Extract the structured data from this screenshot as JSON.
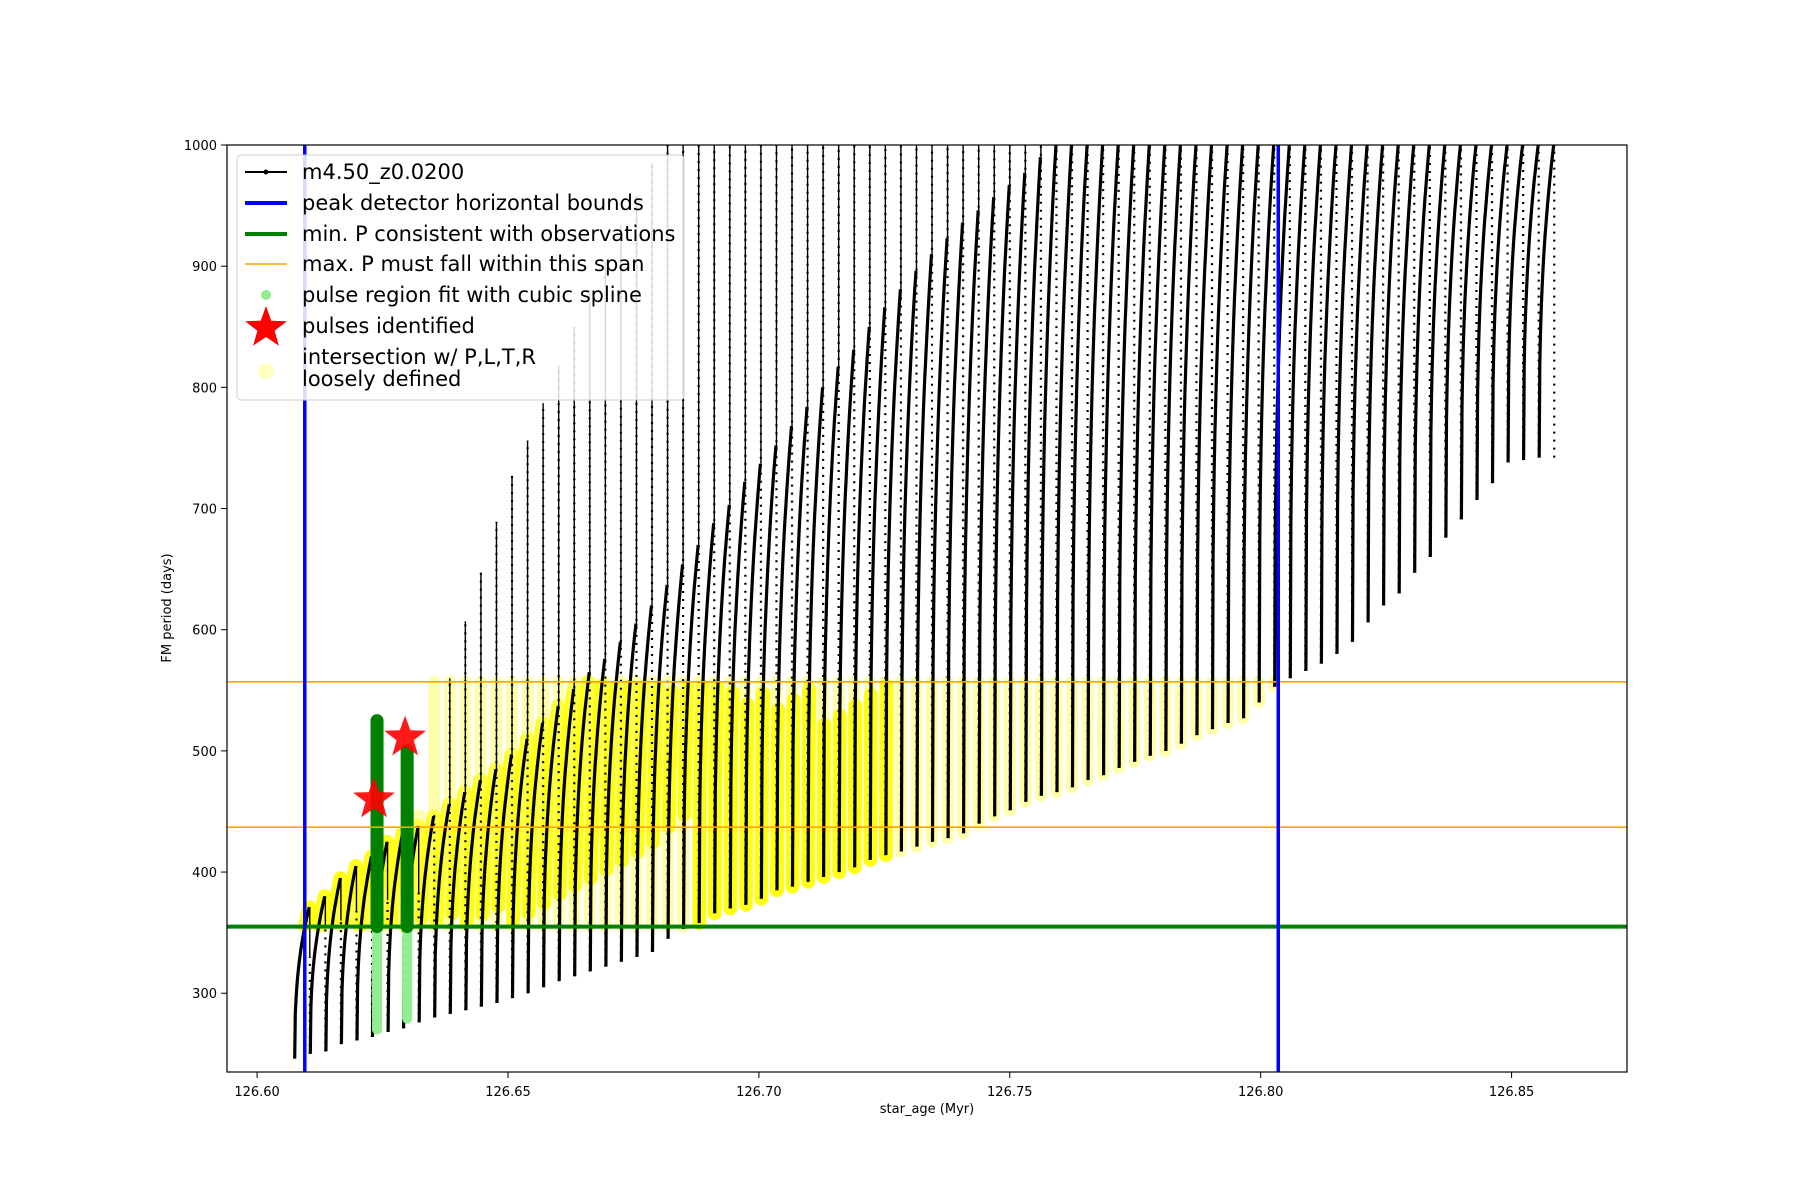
{
  "chart_data": {
    "type": "line",
    "xlabel": "star_age (Myr)",
    "ylabel": "FM period (days)",
    "xlim": [
      126.594,
      126.873
    ],
    "ylim": [
      235,
      1000
    ],
    "xticks": [
      "126.60",
      "126.65",
      "126.70",
      "126.75",
      "126.80",
      "126.85"
    ],
    "yticks": [
      "300",
      "400",
      "500",
      "600",
      "700",
      "800",
      "900",
      "1000"
    ],
    "grid": false,
    "legend_position": "upper-left",
    "legend": [
      {
        "label": "m4.50_z0.0200",
        "kind": "line-marker",
        "color": "#000000"
      },
      {
        "label": "peak detector horizontal bounds",
        "kind": "line",
        "color": "#0000ff"
      },
      {
        "label": "min. P consistent with observations",
        "kind": "line",
        "color": "#008000"
      },
      {
        "label": "max. P must fall within this span",
        "kind": "line",
        "color": "#ffa500"
      },
      {
        "label": "pulse region fit with cubic spline",
        "kind": "dot",
        "color": "#90ee90"
      },
      {
        "label": "pulses identified",
        "kind": "star",
        "color": "#ff0000"
      },
      {
        "label": "intersection w/ P,L,T,R\nloosely defined",
        "kind": "circle",
        "color": "#ffff99"
      }
    ],
    "vertical_lines": {
      "name": "peak detector horizontal bounds",
      "color": "#0000ff",
      "x": [
        126.6095,
        126.8035
      ]
    },
    "horizontal_lines": [
      {
        "name": "min. P consistent with observations",
        "color": "#008000",
        "y": 355
      },
      {
        "name": "max. P must fall within this span",
        "color": "#ffa500",
        "y": 437
      },
      {
        "name": "max. P must fall within this span",
        "color": "#ffa500",
        "y": 557
      }
    ],
    "series": [
      {
        "name": "m4.50_z0.0200",
        "color": "#000000",
        "cycles": {
          "x_start": [
            126.6075,
            126.6106,
            126.6137,
            126.6168,
            126.6199,
            126.623,
            126.6261,
            126.6292,
            126.6323,
            126.6354,
            126.6385,
            126.6416,
            126.6447,
            126.6478,
            126.6509,
            126.654,
            126.6571,
            126.6602,
            126.6633,
            126.6664,
            126.6695,
            126.6726,
            126.6757,
            126.6788,
            126.6819,
            126.685,
            126.6881,
            126.6912,
            126.6943,
            126.6974,
            126.7005,
            126.7036,
            126.7067,
            126.7098,
            126.7129,
            126.716,
            126.7191,
            126.7222,
            126.7253,
            126.7284,
            126.7315,
            126.7346,
            126.7377,
            126.7408,
            126.7439,
            126.747,
            126.7501,
            126.7532,
            126.7563,
            126.7594,
            126.7625,
            126.7656,
            126.7687,
            126.7718,
            126.7749,
            126.778,
            126.7811,
            126.7842,
            126.7873,
            126.7904,
            126.7935,
            126.7966,
            126.7997,
            126.8028,
            126.8059,
            126.809,
            126.8121,
            126.8152,
            126.8183,
            126.8214,
            126.8245,
            126.8276,
            126.8307,
            126.8338,
            126.8369,
            126.84,
            126.8431,
            126.8462,
            126.8493,
            126.8524,
            126.8555
          ],
          "y_min": [
            246,
            250,
            252,
            258,
            261,
            264,
            268,
            271,
            276,
            280,
            283,
            286,
            289,
            292,
            296,
            300,
            305,
            310,
            314,
            318,
            322,
            326,
            330,
            334,
            345,
            353,
            358,
            366,
            370,
            373,
            378,
            385,
            388,
            392,
            396,
            400,
            404,
            410,
            414,
            417,
            421,
            425,
            428,
            432,
            440,
            446,
            451,
            458,
            463,
            466,
            470,
            476,
            480,
            486,
            491,
            496,
            500,
            506,
            513,
            518,
            523,
            527,
            540,
            553,
            560,
            566,
            572,
            580,
            590,
            606,
            620,
            630,
            647,
            660,
            676,
            691,
            707,
            721,
            738,
            740,
            742
          ],
          "y_max": [
            371,
            380,
            395,
            405,
            413,
            425,
            432,
            438,
            446,
            456,
            466,
            476,
            485,
            497,
            510,
            523,
            537,
            551,
            565,
            576,
            590,
            605,
            620,
            637,
            654,
            670,
            688,
            703,
            722,
            737,
            752,
            768,
            784,
            800,
            817,
            831,
            850,
            866,
            881,
            896,
            910,
            923,
            936,
            946,
            957,
            967,
            977,
            990,
            1000,
            1000,
            1000,
            1000,
            1000,
            1000,
            1000,
            1000,
            1000,
            1000,
            1000,
            1000,
            1000,
            1000,
            1000,
            1000,
            1000,
            1000,
            1000,
            1000,
            1000,
            1000,
            1000,
            1000,
            1000,
            1000,
            1000,
            1000,
            1000,
            1000,
            1000,
            1000,
            1000
          ],
          "spike_top": [
            330,
            355,
            360,
            368,
            372,
            377,
            381,
            383,
            447,
            560,
            607,
            647,
            689,
            727,
            756,
            787,
            818,
            850,
            880,
            904,
            934,
            958,
            985,
            1000,
            1000,
            1000,
            1000,
            1000,
            1000,
            1000,
            1000,
            1000,
            1000,
            1000,
            1000,
            1000,
            1000,
            1000,
            1000,
            1000,
            1000,
            1000,
            1000,
            1000,
            1000,
            1000,
            1000,
            1000,
            1000,
            1000,
            1000,
            1000,
            1000,
            1000,
            1000,
            1000,
            1000,
            1000,
            1000,
            1000,
            1000,
            1000,
            1000,
            1000,
            1000,
            1000,
            1000,
            1000,
            1000,
            1000,
            1000,
            1000,
            1000,
            1000,
            1000,
            1000,
            1000,
            1000,
            1000,
            1000,
            1000
          ]
        }
      },
      {
        "name": "pulse region fit with cubic spline",
        "color": "#90ee90",
        "x": [
          126.6239,
          126.6299
        ],
        "y_range": [
          [
            270,
            500
          ],
          [
            279,
            500
          ]
        ]
      },
      {
        "name": "pulses identified",
        "color": "#ff0000",
        "x": [
          126.6233,
          126.6295
        ],
        "y": [
          460,
          511
        ]
      },
      {
        "name": "intersection w/ P,L,T,R loosely defined",
        "color": "#ffff00",
        "y_range": [
          355,
          557
        ]
      }
    ],
    "green_fit_regions": [
      {
        "x": 126.6239,
        "y_range": [
          355,
          525
        ]
      },
      {
        "x": 126.6299,
        "y_range": [
          355,
          500
        ]
      }
    ]
  }
}
